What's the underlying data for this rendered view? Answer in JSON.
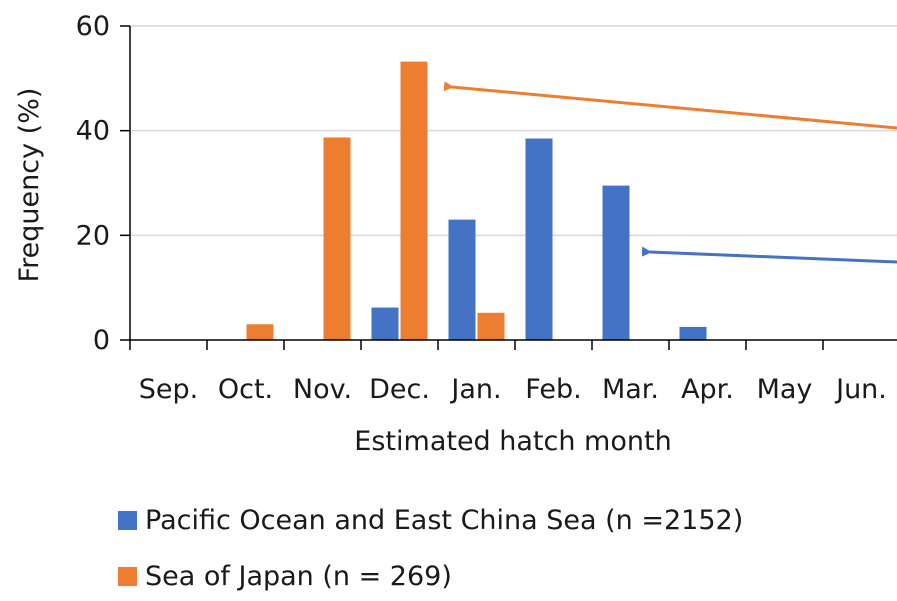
{
  "chart_data": {
    "type": "bar",
    "title": "",
    "xlabel": "Estimated hatch month",
    "ylabel": "Frequency (%)",
    "ylim": [
      0,
      60
    ],
    "yticks": [
      0,
      20,
      40,
      60
    ],
    "grid": true,
    "legend_position": "bottom",
    "categories": [
      "Sep.",
      "Oct.",
      "Nov.",
      "Dec.",
      "Jan.",
      "Feb.",
      "Mar.",
      "Apr.",
      "May",
      "Jun."
    ],
    "series": [
      {
        "name": "Pacific Ocean and East China Sea (n =2152)",
        "color": "#4472C4",
        "values": [
          0,
          0,
          0,
          6.2,
          23.0,
          38.5,
          29.5,
          2.5,
          0,
          0
        ]
      },
      {
        "name": "Sea of Japan (n = 269)",
        "color": "#ED7D31",
        "values": [
          0,
          3.0,
          38.7,
          53.2,
          5.2,
          0,
          0,
          0,
          0,
          0
        ]
      }
    ],
    "annotations": [
      {
        "type": "arrow",
        "color": "#ED7D31",
        "points_to": "Dec."
      },
      {
        "type": "arrow",
        "color": "#4472C4",
        "points_to": "Mar."
      }
    ]
  }
}
